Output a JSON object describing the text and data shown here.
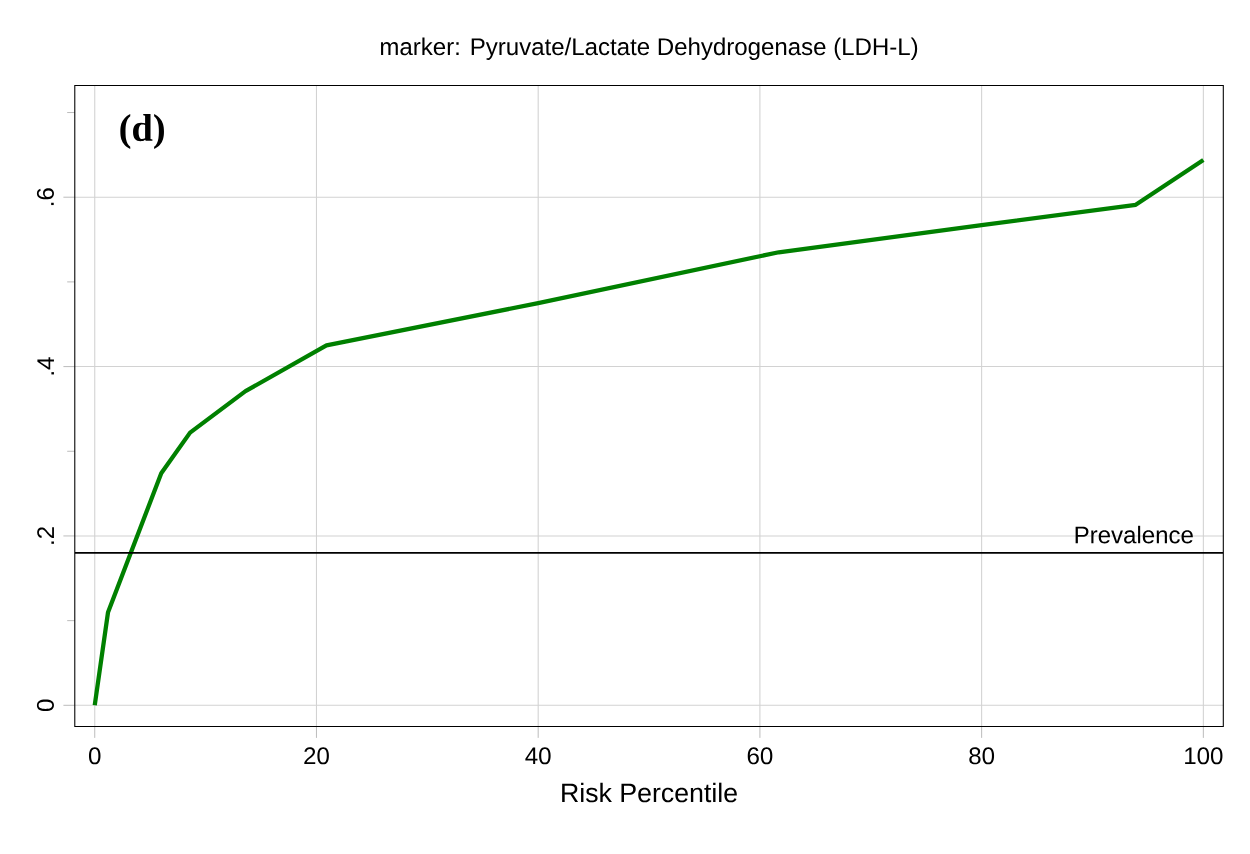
{
  "chart_data": {
    "type": "line",
    "title": "marker: Pyruvate/Lactate Dehydrogenase (LDH-L)",
    "xlabel": "Risk Percentile",
    "annotations": [
      "(d)"
    ],
    "series": [
      {
        "color": "#008000",
        "x": [
          0,
          1.2,
          6,
          8.6,
          13.6,
          20.9,
          40,
          61.7,
          80,
          93.9,
          100
        ],
        "values": [
          0,
          0.11,
          0.274,
          0.322,
          0.371,
          0.425,
          0.475,
          0.535,
          0.567,
          0.591,
          0.644
        ]
      }
    ],
    "xlim": [
      -1.8,
      101.8
    ],
    "ylim": [
      -0.025,
      0.732
    ],
    "xticks": [
      0,
      20,
      40,
      60,
      80,
      100
    ],
    "yticks": [
      {
        "value": 0,
        "label": "0"
      },
      {
        "value": 0.2,
        "label": ".2"
      },
      {
        "value": 0.4,
        "label": ".4"
      },
      {
        "value": 0.6,
        "label": ".6"
      }
    ],
    "ref_lines": [
      {
        "axis": "y",
        "value": 0.18,
        "label": "Prevalence",
        "color": "#000000"
      }
    ],
    "grid": true,
    "marker": "none",
    "line_style": "solid"
  }
}
